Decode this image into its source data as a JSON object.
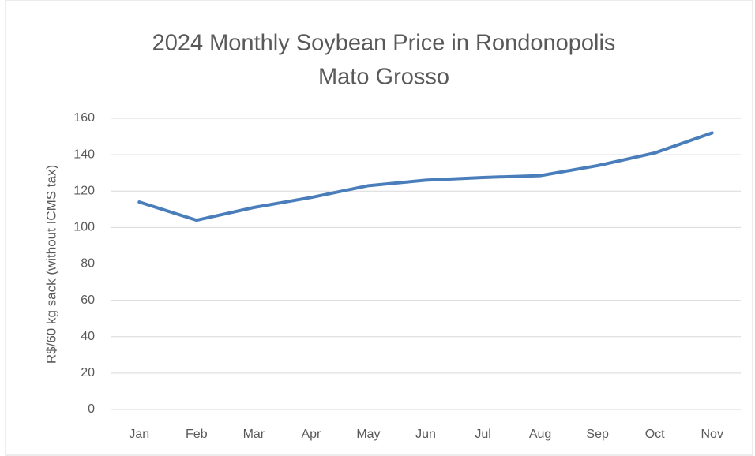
{
  "chart_data": {
    "type": "line",
    "title": [
      "2024 Monthly Soybean Price in Rondonopolis",
      "Mato Grosso"
    ],
    "y_label": "R$/60 kg sack (without ICMS tax)",
    "categories": [
      "Jan",
      "Feb",
      "Mar",
      "Apr",
      "May",
      "Jun",
      "Jul",
      "Aug",
      "Sep",
      "Oct",
      "Nov"
    ],
    "series": [
      {
        "name": "Soybean price",
        "color": "#4a7ebb",
        "values": [
          114,
          104,
          111,
          116.5,
          123,
          126,
          127.5,
          128.5,
          134,
          141,
          152
        ]
      }
    ],
    "ylim": [
      0,
      160
    ],
    "yticks": [
      0,
      20,
      40,
      60,
      80,
      100,
      120,
      140,
      160
    ],
    "grid": true,
    "legend": false
  }
}
